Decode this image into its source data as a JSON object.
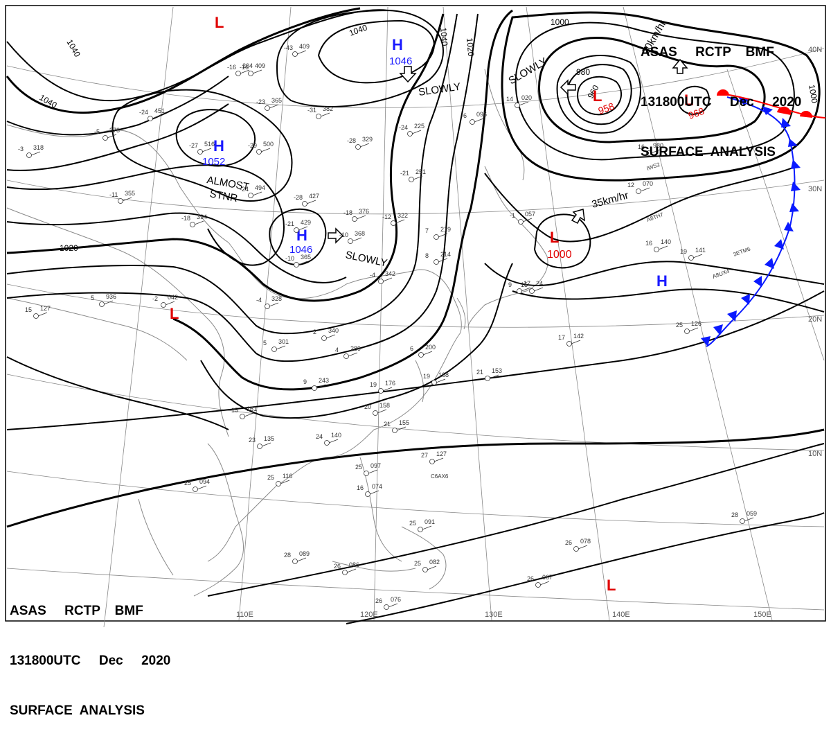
{
  "header": {
    "line1": "ASAS     RCTP    BMF",
    "line2": "131800UTC     Dec     2020",
    "line3": "SURFACE  ANALYSIS"
  },
  "colors": {
    "isobar": "#000000",
    "high": "#1a1aff",
    "low": "#e00000",
    "cold_front": "#0a1aff",
    "warm_front": "#ff0000",
    "grid": "#888888",
    "coast": "#8a8a8a"
  },
  "pressure_centers": [
    {
      "kind": "H",
      "value": "1046"
    },
    {
      "kind": "H",
      "value": "1052"
    },
    {
      "kind": "H",
      "value": "1046"
    },
    {
      "kind": "H",
      "value": ""
    },
    {
      "kind": "L",
      "value": "958"
    },
    {
      "kind": "L",
      "value": "968"
    },
    {
      "kind": "L",
      "value": "1000"
    },
    {
      "kind": "L",
      "value": ""
    },
    {
      "kind": "L",
      "value": ""
    },
    {
      "kind": "L",
      "value": ""
    }
  ],
  "isobar_labels": [
    "1040",
    "1040",
    "1040",
    "1040",
    "1020",
    "1020",
    "1000",
    "1000",
    "980",
    "960"
  ],
  "motion_labels": [
    "SLOWLY",
    "SLOWLY",
    "SLOWLY",
    "ALMOST",
    "STNR",
    "35km/hr",
    "20km/hr"
  ],
  "lat_labels": [
    "40N",
    "30N",
    "20N",
    "10N"
  ],
  "lon_labels": [
    "110E",
    "120E",
    "130E",
    "140E",
    "150E"
  ],
  "stations": [
    {
      "t": "-16",
      "p": "204"
    },
    {
      "t": "-43",
      "p": "409"
    },
    {
      "t": "-23",
      "p": "365"
    },
    {
      "t": "-31",
      "p": "382"
    },
    {
      "t": "-24",
      "p": "451"
    },
    {
      "t": "-27",
      "p": "516"
    },
    {
      "t": "-29",
      "p": "500"
    },
    {
      "t": "-24",
      "p": "494"
    },
    {
      "t": "-28",
      "p": "427"
    },
    {
      "t": "-11",
      "p": "355"
    },
    {
      "t": "-18",
      "p": "394"
    },
    {
      "t": "-21",
      "p": "429"
    },
    {
      "t": "-18",
      "p": "376"
    },
    {
      "t": "-12",
      "p": "322"
    },
    {
      "t": "-28",
      "p": "329"
    },
    {
      "t": "-24",
      "p": "225"
    },
    {
      "t": "-21",
      "p": "251"
    },
    {
      "t": "-10",
      "p": "368"
    },
    {
      "t": "-10",
      "p": "365"
    },
    {
      "t": "-5",
      "p": "373"
    },
    {
      "t": "-3",
      "p": "318"
    },
    {
      "t": "-2",
      "p": "042"
    },
    {
      "t": "5",
      "p": "936"
    },
    {
      "t": "15",
      "p": "127"
    },
    {
      "t": "-4",
      "p": "328"
    },
    {
      "t": "2",
      "p": "340"
    },
    {
      "t": "-4",
      "p": "342"
    },
    {
      "t": "4",
      "p": "289"
    },
    {
      "t": "9",
      "p": "243"
    },
    {
      "t": "5",
      "p": "301"
    },
    {
      "t": "6",
      "p": "200"
    },
    {
      "t": "19",
      "p": "176"
    },
    {
      "t": "20",
      "p": "158"
    },
    {
      "t": "21",
      "p": "155"
    },
    {
      "t": "15",
      "p": "161"
    },
    {
      "t": "23",
      "p": "135"
    },
    {
      "t": "24",
      "p": "140"
    },
    {
      "t": "25",
      "p": "116"
    },
    {
      "t": "25",
      "p": "094"
    },
    {
      "t": "25",
      "p": "097"
    },
    {
      "t": "16",
      "p": "074"
    },
    {
      "t": "27",
      "p": "127"
    },
    {
      "t": "28",
      "p": "089"
    },
    {
      "t": "26",
      "p": "086"
    },
    {
      "t": "25",
      "p": "082"
    },
    {
      "t": "26",
      "p": "076"
    },
    {
      "t": "26",
      "p": "067"
    },
    {
      "t": "26",
      "p": "078"
    },
    {
      "t": "28",
      "p": "059"
    },
    {
      "t": "17",
      "p": "142"
    },
    {
      "t": "21",
      "p": "153"
    },
    {
      "t": "19",
      "p": "168"
    },
    {
      "t": "16",
      "p": "140"
    },
    {
      "t": "19",
      "p": "141"
    },
    {
      "t": "25",
      "p": "126"
    },
    {
      "t": "12",
      "p": "070"
    },
    {
      "t": "-1",
      "p": "057"
    },
    {
      "t": "14",
      "p": "020"
    },
    {
      "t": "-6",
      "p": "096"
    },
    {
      "t": "-16",
      "p": "409"
    },
    {
      "t": "15",
      "p": "24"
    },
    {
      "t": "9",
      "p": "17"
    },
    {
      "t": "7",
      "p": "219"
    },
    {
      "t": "8",
      "p": "214"
    },
    {
      "t": "16",
      "p": "980"
    },
    {
      "t": "25",
      "p": "091"
    }
  ],
  "ship_calls": [
    "C6AX6",
    "A8UX4",
    "3ETM6",
    "A8TH7",
    "IWS2"
  ]
}
